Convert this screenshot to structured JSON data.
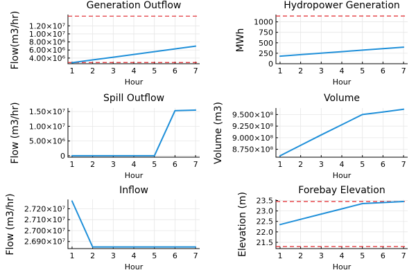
{
  "colors": {
    "series": "#1e8fd9",
    "reference": "#e0262b"
  },
  "chart_data": [
    {
      "id": "generation-outflow",
      "type": "line",
      "title": "Generation Outflow",
      "xlabel": "Hour",
      "ylabel": "Flow(m3/hr)",
      "x": [
        1,
        2,
        3,
        4,
        5,
        6,
        7
      ],
      "series": [
        {
          "values": [
            2850000,
            3540000,
            4220000,
            4910000,
            5590000,
            6280000,
            6960000
          ]
        }
      ],
      "reference_lines": [
        2900000,
        14400000
      ],
      "xlim": [
        0.8,
        7.2
      ],
      "ylim": [
        2600000,
        14800000
      ],
      "xticks": [
        "1",
        "2",
        "3",
        "4",
        "5",
        "6",
        "7"
      ],
      "yticks": [
        {
          "value": 4000000,
          "label": "4.00×10⁶"
        },
        {
          "value": 6000000,
          "label": "6.00×10⁶"
        },
        {
          "value": 8000000,
          "label": "8.00×10⁶"
        },
        {
          "value": 10000000,
          "label": "1.00×10⁷"
        },
        {
          "value": 12000000,
          "label": "1.20×10⁷"
        }
      ],
      "grid": true
    },
    {
      "id": "hydropower-generation",
      "type": "line",
      "title": "Hydropower Generation",
      "xlabel": "Hour",
      "ylabel": "MWh",
      "x": [
        1,
        2,
        3,
        4,
        5,
        6,
        7
      ],
      "series": [
        {
          "values": [
            180,
            216,
            252,
            288,
            324,
            360,
            396
          ]
        }
      ],
      "reference_lines": [
        1140
      ],
      "xlim": [
        0.8,
        7.2
      ],
      "ylim": [
        0,
        1175
      ],
      "xticks": [
        "1",
        "2",
        "3",
        "4",
        "5",
        "6",
        "7"
      ],
      "yticks": [
        {
          "value": 0,
          "label": "0"
        },
        {
          "value": 250,
          "label": "250"
        },
        {
          "value": 500,
          "label": "500"
        },
        {
          "value": 750,
          "label": "750"
        },
        {
          "value": 1000,
          "label": "1000"
        }
      ],
      "grid": true
    },
    {
      "id": "spill-outflow",
      "type": "line",
      "title": "Spill Outflow",
      "xlabel": "Hour",
      "ylabel": "Flow (m3/hr)",
      "x": [
        1,
        2,
        3,
        4,
        5,
        6,
        7
      ],
      "series": [
        {
          "values": [
            0,
            0,
            0,
            0,
            0,
            15300000,
            15500000
          ]
        }
      ],
      "reference_lines": [],
      "xlim": [
        0.8,
        7.2
      ],
      "ylim": [
        -500000,
        16200000
      ],
      "xticks": [
        "1",
        "2",
        "3",
        "4",
        "5",
        "6",
        "7"
      ],
      "yticks": [
        {
          "value": 0,
          "label": "0"
        },
        {
          "value": 5000000,
          "label": "5.00×10⁶"
        },
        {
          "value": 10000000,
          "label": "1.00×10⁷"
        },
        {
          "value": 15000000,
          "label": "1.50×10⁷"
        }
      ],
      "grid": true
    },
    {
      "id": "volume",
      "type": "line",
      "title": "Volume",
      "xlabel": "Hour",
      "ylabel": "Volume (m3)",
      "x": [
        1,
        2,
        3,
        4,
        5,
        6,
        7
      ],
      "series": [
        {
          "values": [
            861000000,
            883500000,
            906000000,
            928000000,
            950000000,
            955500000,
            961500000
          ]
        }
      ],
      "reference_lines": [],
      "xlim": [
        0.8,
        7.2
      ],
      "ylim": [
        858000000,
        964000000
      ],
      "xticks": [
        "1",
        "2",
        "3",
        "4",
        "5",
        "6",
        "7"
      ],
      "yticks": [
        {
          "value": 875000000,
          "label": "8.750×10⁸"
        },
        {
          "value": 900000000,
          "label": "9.000×10⁸"
        },
        {
          "value": 925000000,
          "label": "9.250×10⁸"
        },
        {
          "value": 950000000,
          "label": "9.500×10⁸"
        }
      ],
      "grid": true
    },
    {
      "id": "inflow",
      "type": "line",
      "title": "Inflow",
      "xlabel": "Hour",
      "ylabel": "Flow (m3/hr)",
      "x": [
        1,
        2,
        3,
        4,
        5,
        6,
        7
      ],
      "series": [
        {
          "values": [
            27270000,
            26850000,
            26850000,
            26850000,
            26850000,
            26850000,
            26850000
          ]
        }
      ],
      "reference_lines": [],
      "xlim": [
        0.8,
        7.2
      ],
      "ylim": [
        26835000,
        27285000
      ],
      "xticks": [
        "1",
        "2",
        "3",
        "4",
        "5",
        "6",
        "7"
      ],
      "yticks": [
        {
          "value": 26900000,
          "label": "2.690×10⁷"
        },
        {
          "value": 27000000,
          "label": "2.700×10⁷"
        },
        {
          "value": 27100000,
          "label": "2.710×10⁷"
        },
        {
          "value": 27200000,
          "label": "2.720×10⁷"
        }
      ],
      "grid": true
    },
    {
      "id": "forebay-elevation",
      "type": "line",
      "title": "Forebay Elevation",
      "xlabel": "Hour",
      "ylabel": "Elevation (m)",
      "x": [
        1,
        2,
        3,
        4,
        5,
        6,
        7
      ],
      "series": [
        {
          "values": [
            22.35,
            22.6,
            22.85,
            23.1,
            23.35,
            23.4,
            23.45
          ]
        }
      ],
      "reference_lines": [
        23.45,
        21.3
      ],
      "xlim": [
        0.8,
        7.2
      ],
      "ylim": [
        21.2,
        23.55
      ],
      "xticks": [
        "1",
        "2",
        "3",
        "4",
        "5",
        "6",
        "7"
      ],
      "yticks": [
        {
          "value": 21.5,
          "label": "21.5"
        },
        {
          "value": 22.0,
          "label": "22.0"
        },
        {
          "value": 22.5,
          "label": "22.5"
        },
        {
          "value": 23.0,
          "label": "23.0"
        },
        {
          "value": 23.5,
          "label": "23.5"
        }
      ],
      "grid": true
    }
  ]
}
